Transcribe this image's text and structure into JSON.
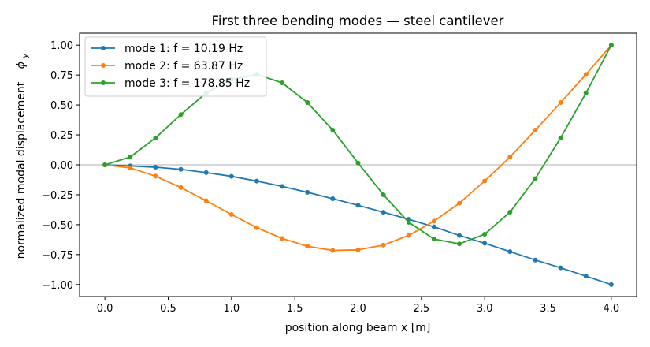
{
  "chart_data": {
    "type": "line",
    "title": "First three bending modes — steel cantilever",
    "xlabel": "position along beam  x [m]",
    "ylabel": "normalized modal displacement",
    "ylabel_symbol": "ϕ",
    "ylabel_symbol_sub": "y",
    "xlim": [
      -0.2,
      4.2
    ],
    "ylim": [
      -1.1,
      1.1
    ],
    "xticks": [
      0.0,
      0.5,
      1.0,
      1.5,
      2.0,
      2.5,
      3.0,
      3.5,
      4.0
    ],
    "xtick_labels": [
      "0.0",
      "0.5",
      "1.0",
      "1.5",
      "2.0",
      "2.5",
      "3.0",
      "3.5",
      "4.0"
    ],
    "yticks": [
      1.0,
      0.75,
      0.5,
      0.25,
      0.0,
      -0.25,
      -0.5,
      -0.75,
      -1.0
    ],
    "ytick_labels": [
      "1.00",
      "0.75",
      "0.50",
      "0.25",
      "0.00",
      "−0.25",
      "−0.50",
      "−0.75",
      "−1.00"
    ],
    "zero_line": true,
    "grid": false,
    "legend_position": "top-left",
    "x": [
      0.0,
      0.2,
      0.4,
      0.6,
      0.8,
      1.0,
      1.2,
      1.4,
      1.6,
      1.8,
      2.0,
      2.2,
      2.4,
      2.6,
      2.8,
      3.0,
      3.2,
      3.4,
      3.6,
      3.8,
      4.0
    ],
    "series": [
      {
        "name": "mode 1: f = 10.19 Hz",
        "color": "#1f77b4",
        "values": [
          0.0,
          -0.009,
          -0.02,
          -0.038,
          -0.065,
          -0.096,
          -0.136,
          -0.18,
          -0.23,
          -0.283,
          -0.338,
          -0.396,
          -0.455,
          -0.518,
          -0.59,
          -0.655,
          -0.725,
          -0.795,
          -0.86,
          -0.93,
          -1.0
        ]
      },
      {
        "name": "mode 2: f = 63.87 Hz",
        "color": "#ff7f0e",
        "values": [
          0.0,
          -0.025,
          -0.095,
          -0.19,
          -0.3,
          -0.415,
          -0.525,
          -0.615,
          -0.68,
          -0.715,
          -0.71,
          -0.67,
          -0.59,
          -0.47,
          -0.32,
          -0.135,
          0.065,
          0.29,
          0.52,
          0.755,
          1.0
        ]
      },
      {
        "name": "mode 3: f = 178.85 Hz",
        "color": "#2ca02c",
        "values": [
          0.0,
          0.065,
          0.225,
          0.42,
          0.6,
          0.715,
          0.755,
          0.685,
          0.52,
          0.29,
          0.015,
          -0.25,
          -0.48,
          -0.62,
          -0.66,
          -0.58,
          -0.395,
          -0.115,
          0.225,
          0.6,
          1.0
        ]
      }
    ]
  }
}
